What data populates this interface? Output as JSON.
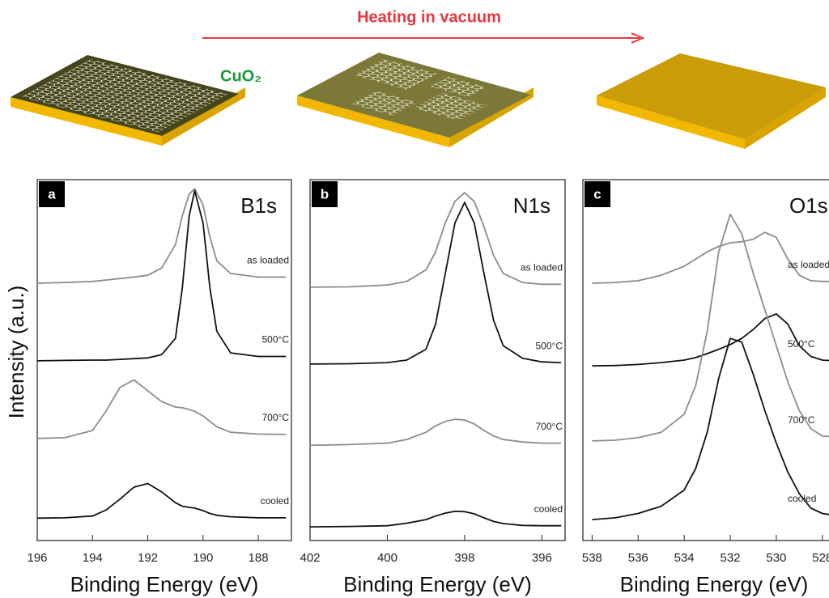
{
  "schematic": {
    "arrow_label": "Heating in vacuum",
    "substrate_label": "CuO₂"
  },
  "chart_data": [
    {
      "type": "line",
      "panel_label": "a",
      "title": "B1s",
      "xlabel": "Binding Energy (eV)",
      "ylabel": "Intensity (a.u.)",
      "x": [
        196,
        195,
        194,
        193.5,
        193,
        192.5,
        192,
        191.5,
        191,
        190.75,
        190.5,
        190.3,
        190,
        189.75,
        189.5,
        189,
        188,
        187
      ],
      "xlim": [
        196,
        186.8
      ],
      "xticks": [
        196,
        194,
        192,
        190,
        188
      ],
      "ylim": [
        0,
        100
      ],
      "series": [
        {
          "name": "as loaded",
          "color": "#8c8c8c",
          "values": [
            71.3,
            71.5,
            71.8,
            72.2,
            72.6,
            73,
            73.5,
            75.5,
            82,
            90,
            96,
            97.5,
            93,
            84,
            77.5,
            74,
            73,
            73
          ]
        },
        {
          "name": "500°C",
          "color": "#111111",
          "values": [
            49.8,
            49.9,
            50,
            50,
            50.2,
            50.4,
            50.6,
            51.5,
            56,
            70,
            90,
            96.9,
            88,
            70,
            58,
            52,
            51,
            51
          ]
        },
        {
          "name": "700°C",
          "color": "#8c8c8c",
          "values": [
            28.3,
            28.5,
            30.5,
            36,
            42.5,
            44.5,
            41.5,
            38.5,
            37,
            36.8,
            36.3,
            35.8,
            34.5,
            33,
            31.5,
            30,
            29.5,
            29.4
          ]
        },
        {
          "name": "cooled",
          "color": "#111111",
          "values": [
            6.2,
            6.3,
            6.8,
            8.5,
            11.5,
            14.8,
            15.8,
            13.5,
            10.5,
            9.5,
            9.2,
            9,
            8.3,
            7.5,
            7,
            6.6,
            6.3,
            6.3
          ]
        }
      ]
    },
    {
      "type": "line",
      "panel_label": "b",
      "title": "N1s",
      "xlabel": "Binding Energy (eV)",
      "x": [
        402,
        401,
        400,
        399.5,
        399,
        398.75,
        398.5,
        398.25,
        398,
        397.75,
        397.5,
        397.25,
        397,
        396.5,
        396,
        395.5
      ],
      "xlim": [
        402,
        395.4
      ],
      "xticks": [
        402,
        400,
        398,
        396
      ],
      "ylim": [
        0,
        100
      ],
      "series": [
        {
          "name": "as loaded",
          "color": "#8c8c8c",
          "values": [
            70.2,
            70.3,
            70.8,
            71.8,
            75,
            80,
            88,
            94,
            96.4,
            94,
            87,
            79,
            74,
            71.5,
            71,
            71
          ]
        },
        {
          "name": "500°C",
          "color": "#111111",
          "values": [
            48.9,
            49,
            49.3,
            50,
            53,
            60,
            74,
            88,
            93.7,
            88,
            74,
            61,
            54,
            50.5,
            49.5,
            49.3
          ]
        },
        {
          "name": "700°C",
          "color": "#8c8c8c",
          "values": [
            26.4,
            26.6,
            27,
            28,
            30,
            31.8,
            33,
            33.6,
            33.4,
            32.3,
            30.5,
            29,
            28,
            27.3,
            27,
            27
          ]
        },
        {
          "name": "cooled",
          "color": "#111111",
          "values": [
            3.8,
            3.9,
            4.1,
            4.8,
            5.8,
            6.8,
            7.6,
            8.1,
            8,
            7.4,
            6.3,
            5.3,
            4.7,
            4.2,
            4.1,
            4.1
          ]
        }
      ]
    },
    {
      "type": "line",
      "panel_label": "c",
      "title": "O1s",
      "xlabel": "Binding Energy (eV)",
      "x": [
        538,
        537,
        536,
        535,
        534,
        533.5,
        533,
        532.5,
        532,
        531.5,
        531,
        530.5,
        530,
        529.5,
        529,
        528.5,
        528,
        527.5
      ],
      "xlim": [
        538.4,
        527.5
      ],
      "xticks": [
        538,
        536,
        534,
        532,
        530,
        528
      ],
      "ylim": [
        0,
        100
      ],
      "series": [
        {
          "name": "as loaded",
          "color": "#8c8c8c",
          "values": [
            71.3,
            71.5,
            72,
            73.5,
            76,
            78,
            80,
            81.5,
            82.5,
            82.8,
            83.5,
            85.4,
            84,
            78,
            73.5,
            72,
            71.8,
            71.8
          ]
        },
        {
          "name": "500°C",
          "color": "#111111",
          "values": [
            48.4,
            48.5,
            48.8,
            49.3,
            50,
            50.7,
            51.8,
            53,
            54.3,
            56,
            58.5,
            61.5,
            62.8,
            60,
            54,
            51,
            50,
            49.8
          ]
        },
        {
          "name": "700°C",
          "color": "#8c8c8c",
          "values": [
            27.6,
            27.8,
            28.5,
            30,
            35,
            43,
            58,
            80,
            90.4,
            85,
            74,
            64,
            54,
            44,
            36,
            31,
            29,
            28.7
          ]
        },
        {
          "name": "cooled",
          "color": "#111111",
          "values": [
            5.8,
            6.3,
            7.5,
            9.5,
            14,
            20,
            30,
            45,
            56,
            55,
            46,
            36,
            27,
            19,
            13,
            9,
            7.5,
            7
          ]
        }
      ]
    }
  ]
}
